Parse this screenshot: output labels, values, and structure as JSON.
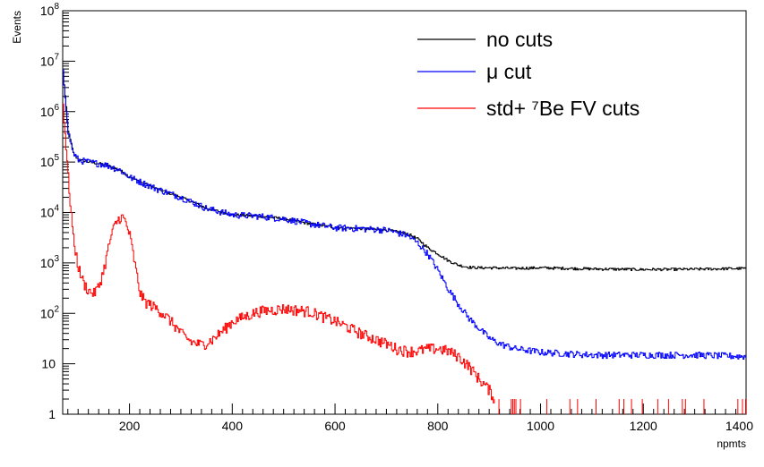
{
  "chart_data": {
    "type": "line",
    "title": "",
    "xlabel": "npmts",
    "ylabel": "Events",
    "xlim": [
      70,
      1400
    ],
    "ylim": [
      1,
      100000000
    ],
    "log_y": true,
    "grid": false,
    "legend_position": "top-right",
    "x_ticks": [
      {
        "value": 200,
        "label": "200"
      },
      {
        "value": 400,
        "label": "400"
      },
      {
        "value": 600,
        "label": "600"
      },
      {
        "value": 800,
        "label": "800"
      },
      {
        "value": 1000,
        "label": "1000"
      },
      {
        "value": 1200,
        "label": "1200"
      },
      {
        "value": 1400,
        "label": "1400"
      }
    ],
    "y_ticks": [
      {
        "value": 1,
        "label": "1"
      },
      {
        "value": 10,
        "label": "10"
      },
      {
        "value": 100,
        "base": "10",
        "exp": "2"
      },
      {
        "value": 1000,
        "base": "10",
        "exp": "3"
      },
      {
        "value": 10000,
        "base": "10",
        "exp": "4"
      },
      {
        "value": 100000,
        "base": "10",
        "exp": "5"
      },
      {
        "value": 1000000,
        "base": "10",
        "exp": "6"
      },
      {
        "value": 10000000,
        "base": "10",
        "exp": "7"
      },
      {
        "value": 100000000,
        "base": "10",
        "exp": "8"
      }
    ],
    "series": [
      {
        "name": "no cuts",
        "color": "#000000",
        "x": [
          70,
          80,
          90,
          100,
          120,
          150,
          180,
          200,
          250,
          300,
          350,
          400,
          450,
          500,
          550,
          600,
          650,
          700,
          740,
          760,
          780,
          800,
          820,
          840,
          860,
          880,
          900,
          950,
          1000,
          1100,
          1200,
          1300,
          1400
        ],
        "y": [
          6000000,
          400000,
          150000,
          110000,
          100000,
          90000,
          70000,
          50000,
          30000,
          20000,
          12000,
          9000,
          8500,
          7500,
          6000,
          5000,
          4800,
          4500,
          3800,
          3000,
          2000,
          1500,
          1100,
          900,
          820,
          800,
          800,
          780,
          800,
          760,
          740,
          750,
          780
        ],
        "noise": 0.06
      },
      {
        "name": "μ cut",
        "color": "#0000ff",
        "x": [
          70,
          80,
          90,
          100,
          120,
          150,
          180,
          200,
          250,
          300,
          350,
          400,
          450,
          500,
          550,
          600,
          650,
          700,
          740,
          760,
          780,
          800,
          820,
          840,
          860,
          880,
          900,
          920,
          950,
          1000,
          1100,
          1200,
          1300,
          1400
        ],
        "y": [
          6000000,
          400000,
          150000,
          110000,
          100000,
          90000,
          70000,
          50000,
          30000,
          20000,
          12000,
          9000,
          8500,
          7500,
          6000,
          5000,
          4800,
          4500,
          3500,
          2500,
          1500,
          700,
          300,
          150,
          80,
          50,
          32,
          25,
          20,
          17,
          15,
          15,
          15,
          14
        ],
        "noise": 0.15
      },
      {
        "name": "std+ ⁷Be FV cuts",
        "color": "#ff0000",
        "x": [
          70,
          80,
          90,
          100,
          110,
          120,
          130,
          140,
          150,
          160,
          170,
          180,
          185,
          190,
          200,
          210,
          220,
          230,
          240,
          260,
          280,
          300,
          320,
          340,
          360,
          380,
          400,
          450,
          500,
          550,
          600,
          650,
          700,
          720,
          740,
          760,
          780,
          800,
          820,
          840,
          860,
          880,
          900,
          910
        ],
        "y": [
          1500000,
          50000,
          3000,
          800,
          400,
          280,
          250,
          350,
          800,
          2500,
          5500,
          8000,
          8200,
          7000,
          3500,
          900,
          250,
          170,
          150,
          110,
          70,
          40,
          27,
          24,
          30,
          45,
          70,
          110,
          125,
          110,
          70,
          40,
          25,
          20,
          18,
          18,
          20,
          20,
          18,
          14,
          9,
          5,
          3,
          2
        ],
        "noise": 0.25,
        "sparse_from": 910,
        "sparse_to": 1400
      }
    ]
  }
}
